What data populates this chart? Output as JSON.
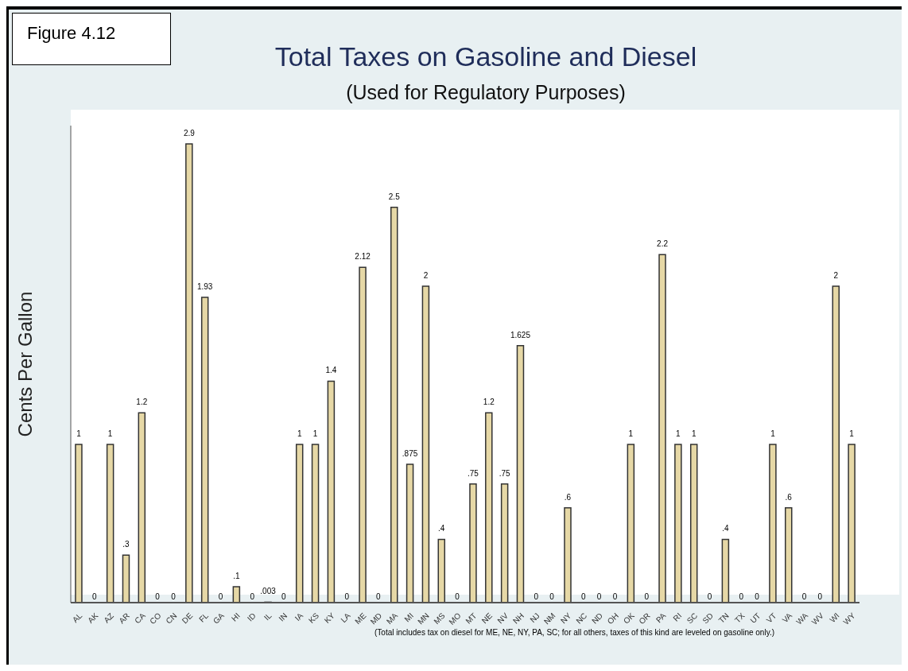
{
  "chart_data": {
    "type": "bar",
    "title": "Total Taxes on Gasoline and Diesel",
    "subtitle": "(Used for Regulatory Purposes)",
    "ylabel": "Cents Per Gallon",
    "categories": [
      "AL",
      "AK",
      "AZ",
      "AR",
      "CA",
      "CO",
      "CN",
      "DE",
      "FL",
      "GA",
      "HI",
      "ID",
      "IL",
      "IN",
      "IA",
      "KS",
      "KY",
      "LA",
      "ME",
      "MD",
      "MA",
      "MI",
      "MN",
      "MS",
      "MO",
      "MT",
      "NE",
      "NV",
      "NH",
      "NJ",
      "NM",
      "NY",
      "NC",
      "ND",
      "OH",
      "OK",
      "OR",
      "PA",
      "RI",
      "SC",
      "SD",
      "TN",
      "TX",
      "UT",
      "VT",
      "VA",
      "WA",
      "WV",
      "WI",
      "WY"
    ],
    "values": [
      1,
      0,
      1,
      0.3,
      1.2,
      0,
      0,
      2.9,
      1.93,
      0,
      0.1,
      0,
      0.003,
      0,
      1,
      1,
      1.4,
      0,
      2.12,
      0,
      2.5,
      0.875,
      2,
      0.4,
      0,
      0.75,
      1.2,
      0.75,
      1.625,
      0,
      0,
      0.6,
      0,
      0,
      0,
      1,
      0,
      2.2,
      1,
      1,
      0,
      0.4,
      0,
      0,
      1,
      0.6,
      0,
      0,
      2,
      1
    ],
    "value_labels": [
      "1",
      "0",
      "1",
      ".3",
      "1.2",
      "0",
      "0",
      "2.9",
      "1.93",
      "0",
      ".1",
      "0",
      ".003",
      "0",
      "1",
      "1",
      "1.4",
      "0",
      "2.12",
      "0",
      "2.5",
      ".875",
      "2",
      ".4",
      "0",
      ".75",
      "1.2",
      ".75",
      "1.625",
      "0",
      "0",
      ".6",
      "0",
      "0",
      "0",
      "1",
      "0",
      "2.2",
      "1",
      "1",
      "0",
      ".4",
      "0",
      "0",
      "1",
      ".6",
      "0",
      "0",
      "2",
      "1"
    ],
    "color": "#e6d8a6",
    "annotations": [
      "Figure 4.12",
      "(Total includes tax on diesel for ME, NE, NY, PA, SC; for all others, taxes of this kind are leveled on gasoline only.)"
    ]
  }
}
